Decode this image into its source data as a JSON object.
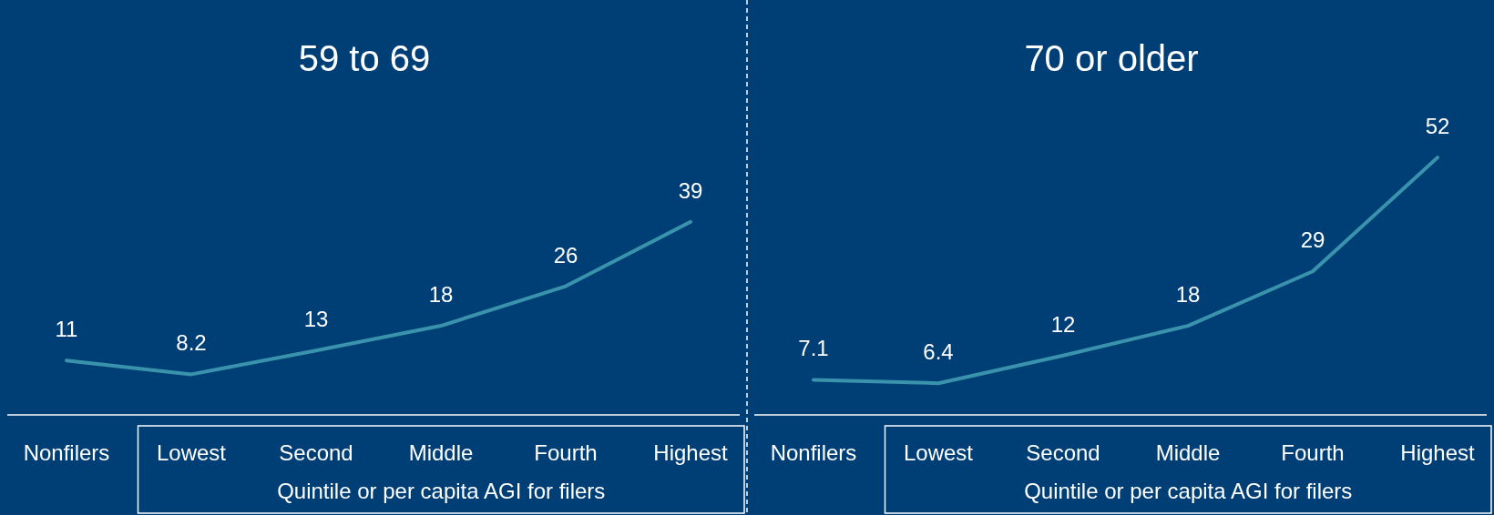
{
  "chart_data": [
    {
      "type": "line",
      "title": "59 to 69",
      "categories": [
        "Nonfilers",
        "Lowest",
        "Second",
        "Middle",
        "Fourth",
        "Highest"
      ],
      "xlabel": "Quintile or per capita AGI for filers",
      "series": [
        {
          "color": "#3a93ad",
          "values": [
            11,
            8.2,
            13,
            18,
            26,
            39
          ]
        }
      ],
      "data_labels": true,
      "tick_labels": "x"
    },
    {
      "type": "line",
      "title": "70 or older",
      "categories": [
        "Nonfilers",
        "Lowest",
        "Second",
        "Middle",
        "Fourth",
        "Highest"
      ],
      "xlabel": "Quintile or per capita AGI for filers",
      "series": [
        {
          "color": "#3a93ad",
          "values": [
            7.1,
            6.4,
            12,
            18,
            29,
            52
          ]
        }
      ],
      "data_labels": true,
      "tick_labels": "x"
    }
  ]
}
